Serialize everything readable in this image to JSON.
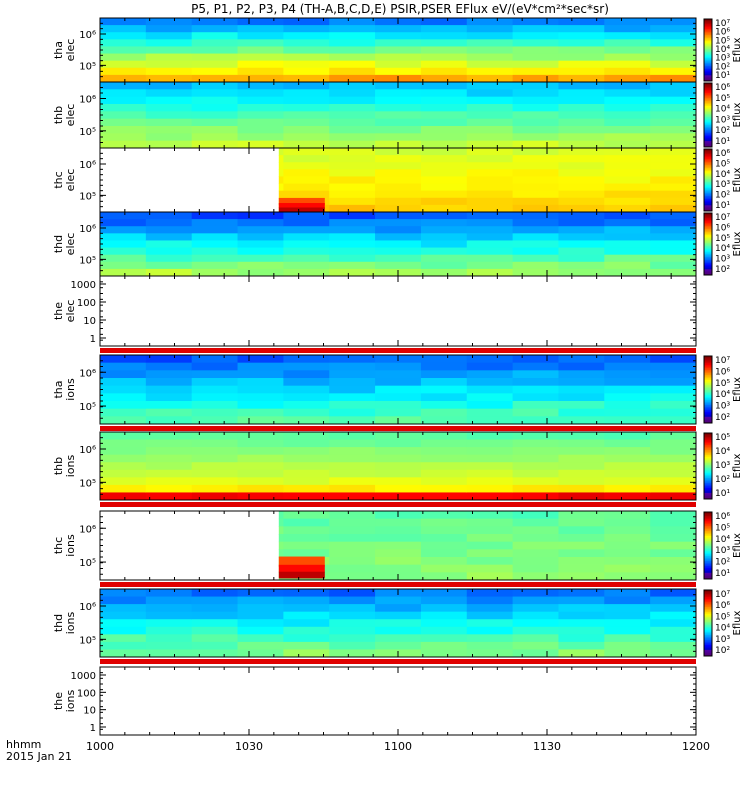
{
  "title": "P5, P1, P2, P3, P4 (TH-A,B,C,D,E) PSIR,PSER EFlux eV/(eV*cm²*sec*sr)",
  "x_label_line1": "hhmm",
  "x_label_line2": "2015 Jan 21",
  "chart_data": {
    "type": "heatmap",
    "x_ticks": [
      "1000",
      "1030",
      "1100",
      "1130",
      "1200"
    ],
    "x_range": [
      "10:00",
      "12:00"
    ],
    "panels": [
      {
        "probe": "tha",
        "species": "elec",
        "y_ticks": [
          "10⁵",
          "10⁶"
        ],
        "log_y": true,
        "colorbar_ticks": [
          "10¹",
          "10²",
          "10³",
          "10⁴",
          "10⁵",
          "10⁶",
          "10⁷"
        ],
        "colorbar_label": "Eflux",
        "data_gap_until": ""
      },
      {
        "probe": "thb",
        "species": "elec",
        "y_ticks": [
          "10⁵",
          "10⁶"
        ],
        "log_y": true,
        "colorbar_ticks": [
          "10¹",
          "10²",
          "10³",
          "10⁴",
          "10⁵",
          "10⁶"
        ],
        "colorbar_label": "Eflux",
        "data_gap_until": ""
      },
      {
        "probe": "thc",
        "species": "elec",
        "y_ticks": [
          "10⁵",
          "10⁶"
        ],
        "log_y": true,
        "colorbar_ticks": [
          "10¹",
          "10²",
          "10³",
          "10⁴",
          "10⁵",
          "10⁶"
        ],
        "colorbar_label": "Eflux",
        "data_gap_until": "10:36"
      },
      {
        "probe": "thd",
        "species": "elec",
        "y_ticks": [
          "10⁵",
          "10⁶"
        ],
        "log_y": true,
        "colorbar_ticks": [
          "10²",
          "10³",
          "10⁴",
          "10⁵",
          "10⁶",
          "10⁷"
        ],
        "colorbar_label": "Eflux",
        "data_gap_until": ""
      },
      {
        "probe": "the",
        "species": "elec",
        "y_ticks": [
          "1",
          "10",
          "100",
          "1000"
        ],
        "log_y": true,
        "colorbar_ticks": [],
        "colorbar_label": "",
        "empty": true
      },
      {
        "probe": "tha",
        "species": "ions",
        "y_ticks": [
          "10⁵",
          "10⁶"
        ],
        "log_y": true,
        "colorbar_ticks": [
          "10²",
          "10³",
          "10⁴",
          "10⁵",
          "10⁶",
          "10⁷"
        ],
        "colorbar_label": "Eflux",
        "data_gap_until": ""
      },
      {
        "probe": "thb",
        "species": "ions",
        "y_ticks": [
          "10⁵",
          "10⁶"
        ],
        "log_y": true,
        "colorbar_ticks": [
          "10¹",
          "10²",
          "10³",
          "10⁴",
          "10⁵"
        ],
        "colorbar_label": "Eflux",
        "data_gap_until": ""
      },
      {
        "probe": "thc",
        "species": "ions",
        "y_ticks": [
          "10⁵",
          "10⁶"
        ],
        "log_y": true,
        "colorbar_ticks": [
          "10¹",
          "10²",
          "10³",
          "10⁴",
          "10⁵",
          "10⁶"
        ],
        "colorbar_label": "Eflux",
        "data_gap_until": "10:36"
      },
      {
        "probe": "thd",
        "species": "ions",
        "y_ticks": [
          "10⁵",
          "10⁶"
        ],
        "log_y": true,
        "colorbar_ticks": [
          "10²",
          "10³",
          "10⁴",
          "10⁵",
          "10⁶",
          "10⁷"
        ],
        "colorbar_label": "Eflux",
        "data_gap_until": ""
      },
      {
        "probe": "the",
        "species": "ions",
        "y_ticks": [
          "1",
          "10",
          "100",
          "1000"
        ],
        "log_y": true,
        "colorbar_ticks": [],
        "colorbar_label": "",
        "empty": true
      }
    ]
  }
}
